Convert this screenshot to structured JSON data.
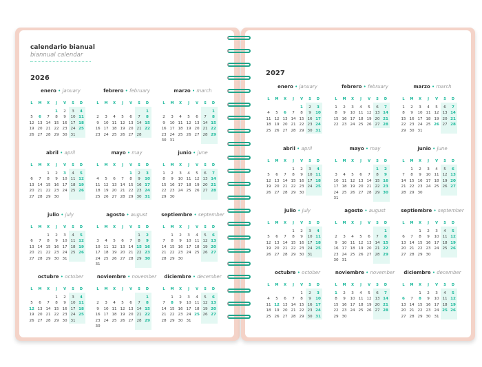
{
  "header": {
    "title": "calendario bianual",
    "subtitle": "biannual calendar"
  },
  "weekdays": [
    "L",
    "M",
    "X",
    "J",
    "V",
    "S",
    "D"
  ],
  "years": [
    {
      "year": "2026",
      "months": [
        {
          "es": "enero",
          "en": "january",
          "first_weekday": 3,
          "days": 31,
          "holidays": [
            1,
            6
          ]
        },
        {
          "es": "febrero",
          "en": "february",
          "first_weekday": 6,
          "days": 28,
          "holidays": []
        },
        {
          "es": "marzo",
          "en": "march",
          "first_weekday": 6,
          "days": 31,
          "holidays": []
        },
        {
          "es": "abril",
          "en": "april",
          "first_weekday": 2,
          "days": 30,
          "holidays": [
            3
          ]
        },
        {
          "es": "mayo",
          "en": "may",
          "first_weekday": 4,
          "days": 31,
          "holidays": [
            1
          ]
        },
        {
          "es": "junio",
          "en": "june",
          "first_weekday": 0,
          "days": 30,
          "holidays": []
        },
        {
          "es": "julio",
          "en": "july",
          "first_weekday": 2,
          "days": 31,
          "holidays": []
        },
        {
          "es": "agosto",
          "en": "august",
          "first_weekday": 5,
          "days": 31,
          "holidays": [
            15
          ]
        },
        {
          "es": "septiembre",
          "en": "september",
          "first_weekday": 1,
          "days": 30,
          "holidays": []
        },
        {
          "es": "octubre",
          "en": "october",
          "first_weekday": 3,
          "days": 31,
          "holidays": [
            12
          ]
        },
        {
          "es": "noviembre",
          "en": "november",
          "first_weekday": 6,
          "days": 30,
          "holidays": [
            1
          ]
        },
        {
          "es": "diciembre",
          "en": "december",
          "first_weekday": 1,
          "days": 31,
          "holidays": [
            6,
            8,
            25
          ]
        }
      ]
    },
    {
      "year": "2027",
      "months": [
        {
          "es": "enero",
          "en": "january",
          "first_weekday": 4,
          "days": 31,
          "holidays": [
            1,
            6
          ]
        },
        {
          "es": "febrero",
          "en": "february",
          "first_weekday": 0,
          "days": 28,
          "holidays": []
        },
        {
          "es": "marzo",
          "en": "march",
          "first_weekday": 0,
          "days": 31,
          "holidays": [
            26
          ]
        },
        {
          "es": "abril",
          "en": "april",
          "first_weekday": 3,
          "days": 30,
          "holidays": []
        },
        {
          "es": "mayo",
          "en": "may",
          "first_weekday": 5,
          "days": 31,
          "holidays": [
            1
          ]
        },
        {
          "es": "junio",
          "en": "june",
          "first_weekday": 1,
          "days": 30,
          "holidays": []
        },
        {
          "es": "julio",
          "en": "july",
          "first_weekday": 3,
          "days": 31,
          "holidays": []
        },
        {
          "es": "agosto",
          "en": "august",
          "first_weekday": 6,
          "days": 31,
          "holidays": [
            15
          ]
        },
        {
          "es": "septiembre",
          "en": "september",
          "first_weekday": 2,
          "days": 30,
          "holidays": []
        },
        {
          "es": "octubre",
          "en": "october",
          "first_weekday": 4,
          "days": 31,
          "holidays": [
            12
          ]
        },
        {
          "es": "noviembre",
          "en": "november",
          "first_weekday": 0,
          "days": 30,
          "holidays": [
            1
          ]
        },
        {
          "es": "diciembre",
          "en": "december",
          "first_weekday": 2,
          "days": 31,
          "holidays": [
            6,
            8,
            25
          ]
        }
      ]
    }
  ],
  "colors": {
    "accent": "#19b89a",
    "weekend_bg": "#e4f8f3",
    "cover": "#f4d3c8"
  }
}
